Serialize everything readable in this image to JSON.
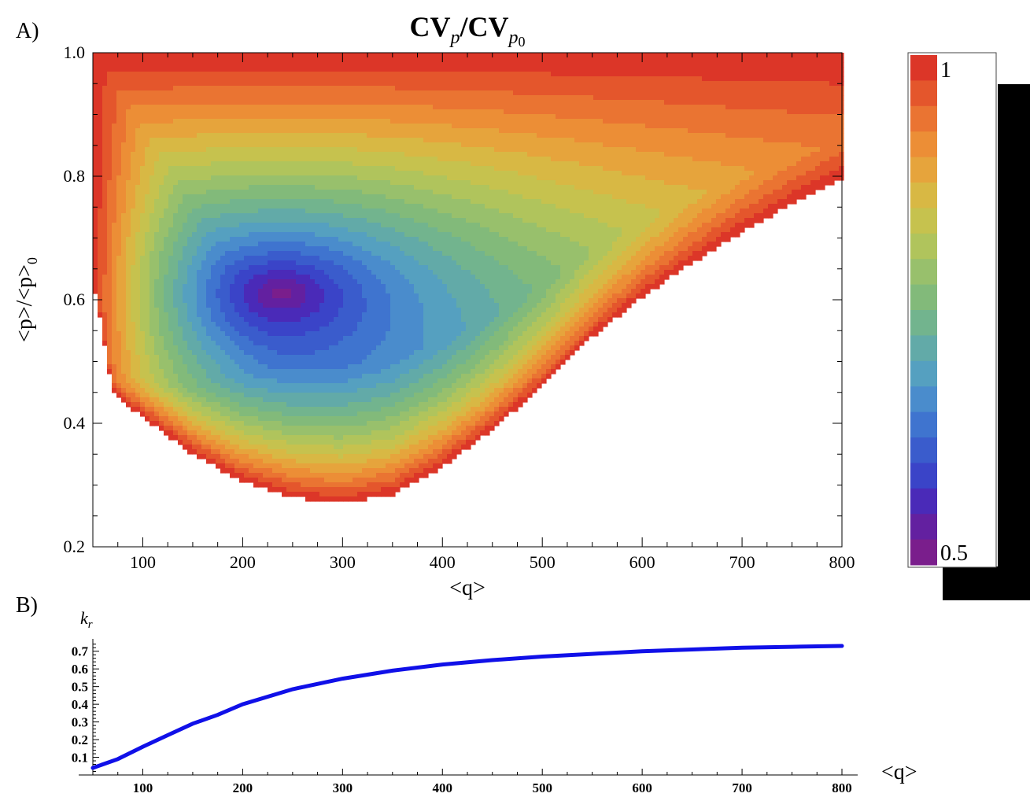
{
  "panel_labels": {
    "a": "A)",
    "b": "B)"
  },
  "colors": {
    "black_block": "#000000",
    "curve": "#1010e8",
    "palette": [
      "#7a1e8c",
      "#6320a0",
      "#4a2ab8",
      "#3a44c8",
      "#3a5ccc",
      "#3f74cf",
      "#4a8ccc",
      "#55a0c0",
      "#62aaa8",
      "#72b48e",
      "#82ba7a",
      "#98c06c",
      "#b0c45c",
      "#c6c24e",
      "#d8b844",
      "#e6a43c",
      "#ec8e36",
      "#ea7432",
      "#e4562c",
      "#dc3628"
    ]
  },
  "chart_data": [
    {
      "type": "heatmap",
      "panel": "A)",
      "title": {
        "main": "CV",
        "sub1": "p",
        "slash": "/CV",
        "sub2": "p",
        "sub3": "0"
      },
      "xlabel": "<q>",
      "ylabel": {
        "main": "<p>/<p>",
        "sub": "0"
      },
      "xlim": [
        50,
        800
      ],
      "ylim": [
        0.2,
        1.0
      ],
      "xticks": [
        "100",
        "200",
        "300",
        "400",
        "500",
        "600",
        "700",
        "800"
      ],
      "yticks": [
        "0.2",
        "0.4",
        "0.6",
        "0.8",
        "1.0"
      ],
      "colorbar": {
        "min_label": "0.5",
        "max_label": "1",
        "range": [
          0.5,
          1.0
        ],
        "steps": 20
      },
      "minimum": {
        "q": 240,
        "p_ratio": 0.61,
        "value": 0.5
      },
      "lower_boundary": [
        [
          50,
          0.63
        ],
        [
          55,
          0.59
        ],
        [
          60,
          0.55
        ],
        [
          65,
          0.49
        ],
        [
          70,
          0.455
        ],
        [
          75,
          0.44
        ],
        [
          100,
          0.41
        ],
        [
          150,
          0.35
        ],
        [
          200,
          0.305
        ],
        [
          250,
          0.28
        ],
        [
          300,
          0.27
        ],
        [
          350,
          0.285
        ],
        [
          400,
          0.33
        ],
        [
          450,
          0.39
        ],
        [
          500,
          0.46
        ],
        [
          550,
          0.54
        ],
        [
          600,
          0.605
        ],
        [
          650,
          0.66
        ],
        [
          700,
          0.71
        ],
        [
          750,
          0.755
        ],
        [
          800,
          0.795
        ]
      ]
    },
    {
      "type": "line",
      "panel": "B)",
      "ylabel": {
        "main": "k",
        "sub": "r"
      },
      "xlabel": "<q>",
      "xlim": [
        50,
        800
      ],
      "ylim": [
        0.0,
        0.77
      ],
      "xticks": [
        "100",
        "200",
        "300",
        "400",
        "500",
        "600",
        "700",
        "800"
      ],
      "yticks": [
        "0.1",
        "0.2",
        "0.3",
        "0.4",
        "0.5",
        "0.6",
        "0.7"
      ],
      "series": [
        {
          "x": [
            50,
            75,
            100,
            125,
            150,
            175,
            200,
            250,
            300,
            350,
            400,
            450,
            500,
            550,
            600,
            650,
            700,
            750,
            800
          ],
          "values": [
            0.04,
            0.09,
            0.16,
            0.225,
            0.29,
            0.34,
            0.4,
            0.485,
            0.545,
            0.59,
            0.625,
            0.65,
            0.67,
            0.685,
            0.7,
            0.71,
            0.72,
            0.725,
            0.73
          ]
        }
      ]
    }
  ]
}
